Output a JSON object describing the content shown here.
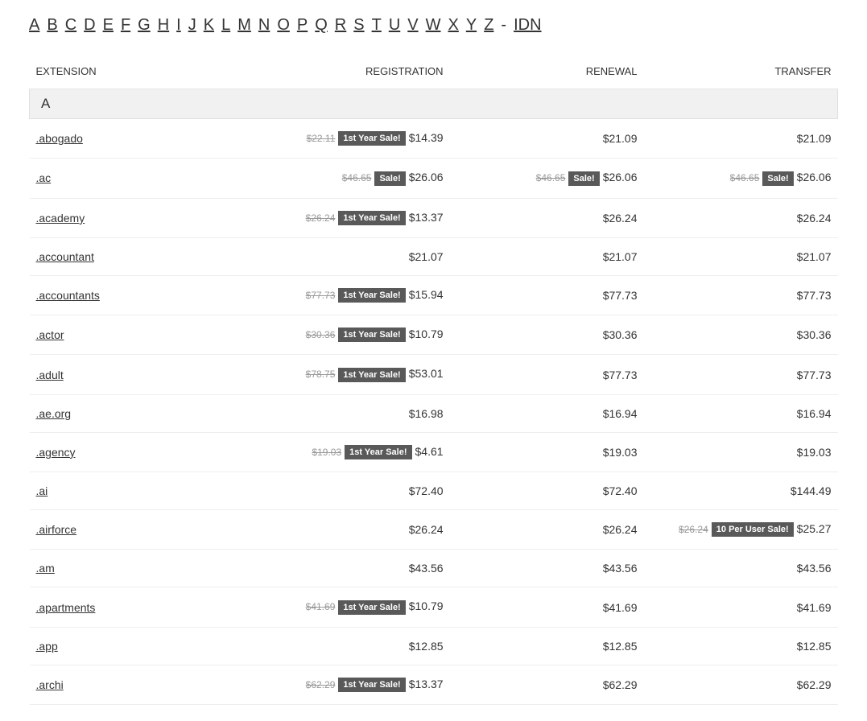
{
  "alpha_nav": {
    "letters": [
      "A",
      "B",
      "C",
      "D",
      "E",
      "F",
      "G",
      "H",
      "I",
      "J",
      "K",
      "L",
      "M",
      "N",
      "O",
      "P",
      "Q",
      "R",
      "S",
      "T",
      "U",
      "V",
      "W",
      "X",
      "Y",
      "Z"
    ],
    "separator": "-",
    "idn": "IDN"
  },
  "columns": {
    "extension": "EXTENSION",
    "registration": "REGISTRATION",
    "renewal": "RENEWAL",
    "transfer": "TRANSFER"
  },
  "section": "A",
  "rows": [
    {
      "ext": ".abogado",
      "reg": {
        "strike": "$22.11",
        "badge": "1st Year Sale!",
        "price": "$14.39"
      },
      "ren": {
        "price": "$21.09"
      },
      "tra": {
        "price": "$21.09"
      }
    },
    {
      "ext": ".ac",
      "reg": {
        "strike": "$46.65",
        "badge": "Sale!",
        "price": "$26.06"
      },
      "ren": {
        "strike": "$46.65",
        "badge": "Sale!",
        "price": "$26.06"
      },
      "tra": {
        "strike": "$46.65",
        "badge": "Sale!",
        "price": "$26.06"
      }
    },
    {
      "ext": ".academy",
      "reg": {
        "strike": "$26.24",
        "badge": "1st Year Sale!",
        "price": "$13.37"
      },
      "ren": {
        "price": "$26.24"
      },
      "tra": {
        "price": "$26.24"
      }
    },
    {
      "ext": ".accountant",
      "reg": {
        "price": "$21.07"
      },
      "ren": {
        "price": "$21.07"
      },
      "tra": {
        "price": "$21.07"
      }
    },
    {
      "ext": ".accountants",
      "reg": {
        "strike": "$77.73",
        "badge": "1st Year Sale!",
        "price": "$15.94"
      },
      "ren": {
        "price": "$77.73"
      },
      "tra": {
        "price": "$77.73"
      }
    },
    {
      "ext": ".actor",
      "reg": {
        "strike": "$30.36",
        "badge": "1st Year Sale!",
        "price": "$10.79"
      },
      "ren": {
        "price": "$30.36"
      },
      "tra": {
        "price": "$30.36"
      }
    },
    {
      "ext": ".adult",
      "reg": {
        "strike": "$78.75",
        "badge": "1st Year Sale!",
        "price": "$53.01"
      },
      "ren": {
        "price": "$77.73"
      },
      "tra": {
        "price": "$77.73"
      }
    },
    {
      "ext": ".ae.org",
      "reg": {
        "price": "$16.98"
      },
      "ren": {
        "price": "$16.94"
      },
      "tra": {
        "price": "$16.94"
      }
    },
    {
      "ext": ".agency",
      "reg": {
        "strike": "$19.03",
        "badge": "1st Year Sale!",
        "price": "$4.61"
      },
      "ren": {
        "price": "$19.03"
      },
      "tra": {
        "price": "$19.03"
      }
    },
    {
      "ext": ".ai",
      "reg": {
        "price": "$72.40"
      },
      "ren": {
        "price": "$72.40"
      },
      "tra": {
        "price": "$144.49"
      }
    },
    {
      "ext": ".airforce",
      "reg": {
        "price": "$26.24"
      },
      "ren": {
        "price": "$26.24"
      },
      "tra": {
        "strike": "$26.24",
        "badge": "10 Per User Sale!",
        "price": "$25.27"
      }
    },
    {
      "ext": ".am",
      "reg": {
        "price": "$43.56"
      },
      "ren": {
        "price": "$43.56"
      },
      "tra": {
        "price": "$43.56"
      }
    },
    {
      "ext": ".apartments",
      "reg": {
        "strike": "$41.69",
        "badge": "1st Year Sale!",
        "price": "$10.79"
      },
      "ren": {
        "price": "$41.69"
      },
      "tra": {
        "price": "$41.69"
      }
    },
    {
      "ext": ".app",
      "reg": {
        "price": "$12.85"
      },
      "ren": {
        "price": "$12.85"
      },
      "tra": {
        "price": "$12.85"
      }
    },
    {
      "ext": ".archi",
      "reg": {
        "strike": "$62.29",
        "badge": "1st Year Sale!",
        "price": "$13.37"
      },
      "ren": {
        "price": "$62.29"
      },
      "tra": {
        "price": "$62.29"
      }
    }
  ],
  "styles": {
    "badge_bg": "#595959",
    "badge_color": "#ffffff",
    "strike_color": "#999999",
    "row_border": "#eeeeee",
    "section_bg": "#f1f1f1",
    "text_color": "#333333"
  }
}
